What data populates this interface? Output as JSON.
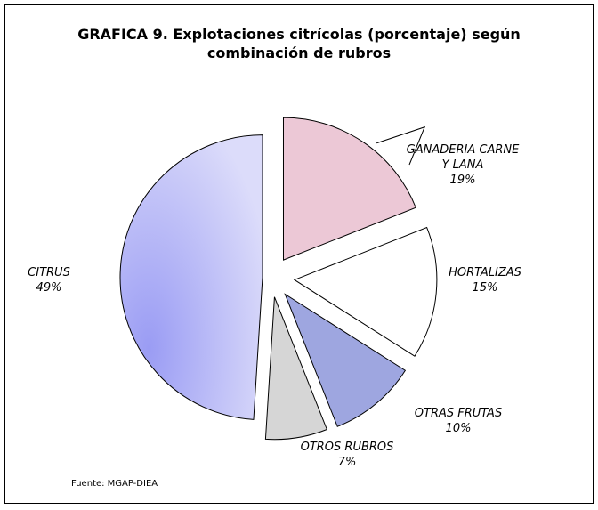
{
  "chart_data": {
    "type": "pie",
    "title": "GRAFICA  9. Explotaciones citrícolas (porcentaje) según combinación de rubros",
    "categories": [
      "GANADERIA CARNE Y LANA",
      "HORTALIZAS",
      "OTRAS FRUTAS",
      "OTROS RUBROS",
      "CITRUS"
    ],
    "values": [
      19,
      15,
      10,
      7,
      49
    ],
    "value_labels": [
      "19%",
      "15%",
      "10%",
      "7%",
      "49%"
    ],
    "colors": [
      "#ecc8d6",
      "#ffffff",
      "#9ea6e0",
      "#d6d6d6",
      "#c8c8f6"
    ],
    "source": "Fuente: MGAP-DIEA"
  }
}
